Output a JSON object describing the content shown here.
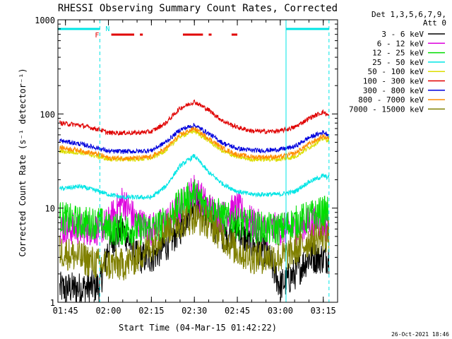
{
  "chart_data": {
    "type": "line",
    "title": "RHESSI Observing Summary Count Rates, Corrected",
    "xlabel": "Start Time (04-Mar-15 01:42:22)",
    "ylabel": "Corrected Count Rate (s⁻¹ detector⁻¹)",
    "yscale": "log",
    "ylim": [
      1,
      1000
    ],
    "xlim": [
      "01:42:22",
      "03:20:00"
    ],
    "x_ticks": [
      "01:45",
      "02:00",
      "02:15",
      "02:30",
      "02:45",
      "03:00",
      "03:15"
    ],
    "y_ticks": [
      "1",
      "10",
      "100",
      "1000"
    ],
    "legend_header": [
      "Det 1,3,5,6,7,9,",
      "Att 0"
    ],
    "legend_position": "right",
    "footer_timestamp": "26-Oct-2021 18:46",
    "flags": {
      "eclipse_label_N": "N",
      "flare_label_F": "F",
      "eclipse_color": "#00e5e5",
      "flare_color": "#e00000",
      "flare_intervals": [
        [
          "02:01",
          "02:09"
        ],
        [
          "02:11",
          "02:12"
        ],
        [
          "02:26",
          "02:33"
        ],
        [
          "02:35",
          "02:36"
        ],
        [
          "02:43",
          "02:45"
        ]
      ],
      "night_intervals": [
        [
          "01:42",
          "01:57"
        ],
        [
          "03:02",
          "03:17"
        ]
      ]
    },
    "series": [
      {
        "name": "3 - 6 keV",
        "color": "#000000",
        "x": [
          "01:43",
          "01:50",
          "01:57",
          "02:00",
          "02:05",
          "02:10",
          "02:15",
          "02:20",
          "02:25",
          "02:30",
          "02:35",
          "02:40",
          "02:45",
          "02:50",
          "02:55",
          "03:00",
          "03:05",
          "03:10",
          "03:15",
          "03:17"
        ],
        "y": [
          1.4,
          1.4,
          1.5,
          4,
          6,
          3,
          3,
          4,
          6,
          12,
          8,
          5,
          6,
          4,
          3.5,
          1.5,
          2,
          3,
          3,
          3
        ]
      },
      {
        "name": "6 - 12 keV",
        "color": "#dd00dd",
        "x": [
          "01:43",
          "01:50",
          "01:57",
          "02:00",
          "02:05",
          "02:10",
          "02:15",
          "02:20",
          "02:25",
          "02:30",
          "02:35",
          "02:40",
          "02:45",
          "02:50",
          "02:55",
          "03:00",
          "03:05",
          "03:10",
          "03:15",
          "03:17"
        ],
        "y": [
          6,
          6,
          6,
          7,
          12,
          7,
          6,
          7,
          10,
          16,
          10,
          8,
          10,
          7,
          6,
          6,
          6,
          7,
          7,
          6
        ]
      },
      {
        "name": "12 - 25 keV",
        "color": "#00dd00",
        "x": [
          "01:43",
          "01:50",
          "01:57",
          "02:00",
          "02:05",
          "02:10",
          "02:15",
          "02:20",
          "02:25",
          "02:30",
          "02:35",
          "02:40",
          "02:45",
          "02:50",
          "02:55",
          "03:00",
          "03:05",
          "03:10",
          "03:15",
          "03:17"
        ],
        "y": [
          8,
          7,
          7,
          6,
          6,
          6,
          6,
          7,
          11,
          14,
          10,
          8,
          7,
          6.5,
          6,
          6,
          7,
          8,
          9,
          9
        ]
      },
      {
        "name": "25 - 50 keV",
        "color": "#00e5e5",
        "x": [
          "01:43",
          "01:50",
          "01:57",
          "02:00",
          "02:05",
          "02:10",
          "02:15",
          "02:20",
          "02:25",
          "02:30",
          "02:35",
          "02:40",
          "02:45",
          "02:50",
          "02:55",
          "03:00",
          "03:05",
          "03:10",
          "03:15",
          "03:17"
        ],
        "y": [
          16,
          17,
          15,
          14,
          13,
          13,
          13,
          17,
          28,
          36,
          24,
          18,
          15,
          14,
          14,
          14,
          15,
          19,
          22,
          21
        ]
      },
      {
        "name": "50 - 100 keV",
        "color": "#dddd00",
        "x": [
          "01:43",
          "01:50",
          "01:57",
          "02:00",
          "02:05",
          "02:10",
          "02:15",
          "02:20",
          "02:25",
          "02:30",
          "02:35",
          "02:40",
          "02:45",
          "02:50",
          "02:55",
          "03:00",
          "03:05",
          "03:10",
          "03:15",
          "03:17"
        ],
        "y": [
          40,
          39,
          35,
          33,
          33,
          33,
          34,
          41,
          58,
          66,
          52,
          40,
          35,
          33,
          33,
          33,
          35,
          44,
          55,
          52
        ]
      },
      {
        "name": "100 - 300 keV",
        "color": "#e00000",
        "x": [
          "01:43",
          "01:50",
          "01:57",
          "02:00",
          "02:05",
          "02:10",
          "02:15",
          "02:20",
          "02:25",
          "02:30",
          "02:35",
          "02:40",
          "02:45",
          "02:50",
          "02:55",
          "03:00",
          "03:05",
          "03:10",
          "03:15",
          "03:17"
        ],
        "y": [
          80,
          76,
          68,
          63,
          63,
          63,
          65,
          80,
          115,
          135,
          110,
          84,
          72,
          66,
          65,
          66,
          72,
          90,
          105,
          95
        ]
      },
      {
        "name": "300 - 800 keV",
        "color": "#0000dd",
        "x": [
          "01:43",
          "01:50",
          "01:57",
          "02:00",
          "02:05",
          "02:10",
          "02:15",
          "02:20",
          "02:25",
          "02:30",
          "02:35",
          "02:40",
          "02:45",
          "02:50",
          "02:55",
          "03:00",
          "03:05",
          "03:10",
          "03:15",
          "03:17"
        ],
        "y": [
          52,
          48,
          43,
          40,
          40,
          40,
          41,
          50,
          68,
          76,
          62,
          49,
          43,
          41,
          41,
          42,
          45,
          56,
          64,
          60
        ]
      },
      {
        "name": "800 - 7000 keV",
        "color": "#ff8c00",
        "x": [
          "01:43",
          "01:50",
          "01:57",
          "02:00",
          "02:05",
          "02:10",
          "02:15",
          "02:20",
          "02:25",
          "02:30",
          "02:35",
          "02:40",
          "02:45",
          "02:50",
          "02:55",
          "03:00",
          "03:05",
          "03:10",
          "03:15",
          "03:17"
        ],
        "y": [
          44,
          41,
          37,
          34,
          34,
          34,
          35,
          43,
          60,
          70,
          55,
          43,
          37,
          35,
          35,
          35,
          38,
          48,
          58,
          55
        ]
      },
      {
        "name": "7000 - 15000 keV",
        "color": "#808000",
        "x": [
          "01:43",
          "01:50",
          "01:57",
          "02:00",
          "02:05",
          "02:10",
          "02:15",
          "02:20",
          "02:25",
          "02:30",
          "02:35",
          "02:40",
          "02:45",
          "02:50",
          "02:55",
          "03:00",
          "03:05",
          "03:10",
          "03:15",
          "03:17"
        ],
        "y": [
          3.5,
          3,
          2.5,
          2.5,
          2.5,
          3,
          4,
          6,
          7,
          8,
          7,
          5,
          3.5,
          3,
          3,
          3,
          3.5,
          4.5,
          5,
          5
        ]
      }
    ]
  }
}
